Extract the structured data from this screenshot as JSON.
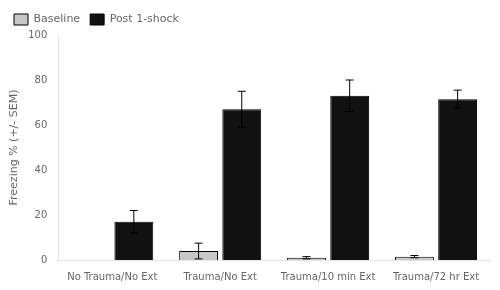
{
  "chart_data": {
    "type": "bar",
    "categories": [
      "No Trauma/No Ext",
      "Trauma/No Ext",
      "Trauma/10 min Ext",
      "Trauma/72 hr Ext"
    ],
    "series": [
      {
        "name": "Baseline",
        "color": "#c8c8c8",
        "values": [
          0.0,
          4.0,
          1.0,
          1.5
        ],
        "errors": [
          0.0,
          3.5,
          0.5,
          0.5
        ]
      },
      {
        "name": "Post 1-shock",
        "color": "#111111",
        "values": [
          17.0,
          67.0,
          73.0,
          71.5
        ],
        "errors": [
          5.0,
          8.0,
          7.0,
          4.0
        ]
      }
    ],
    "ylabel": "Freezing % (+/- SEM)",
    "ylim": [
      0,
      100
    ],
    "yticks": [
      0,
      20,
      40,
      60,
      80,
      100
    ],
    "grid": false,
    "legend": "upper left"
  }
}
